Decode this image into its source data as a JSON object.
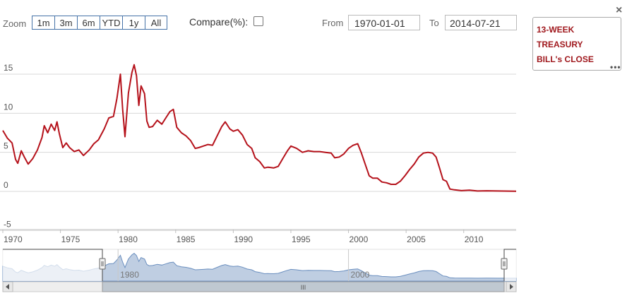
{
  "toolbar": {
    "zoom_label": "Zoom",
    "zoom_buttons": [
      "1m",
      "3m",
      "6m",
      "YTD",
      "1y",
      "All"
    ],
    "compare_label": "Compare(%):",
    "from_label": "From",
    "from_value": "1970-01-01",
    "to_label": "To",
    "to_value": "2014-07-21"
  },
  "legend": {
    "line1": "13-WEEK",
    "line2": "TREASURY",
    "line3": "BILL's CLOSE"
  },
  "close_glyph": "×",
  "menu_glyph": "•••",
  "navigator": {
    "labels": [
      "1980",
      "2000"
    ],
    "scroll_glyph": "III"
  },
  "colors": {
    "series": "#b5121b",
    "grid": "#d8d8d8",
    "navigator_fill": "#a9bed8",
    "navigator_line": "#6b8fbf"
  },
  "chart_data": {
    "type": "line",
    "title": "",
    "xlabel": "",
    "ylabel": "",
    "ylim": [
      -5,
      15
    ],
    "xlim": [
      1970,
      2014.55
    ],
    "y_ticks": [
      "-5",
      "0",
      "5",
      "10",
      "15"
    ],
    "x_ticks": [
      "1970",
      "1975",
      "1980",
      "1985",
      "1990",
      "1995",
      "2000",
      "2005",
      "2010"
    ],
    "series": [
      {
        "name": "13-WEEK TREASURY BILL's CLOSE",
        "points": [
          [
            1970.0,
            7.8
          ],
          [
            1970.4,
            6.8
          ],
          [
            1970.8,
            6.2
          ],
          [
            1971.1,
            4.1
          ],
          [
            1971.3,
            3.6
          ],
          [
            1971.6,
            5.2
          ],
          [
            1971.9,
            4.3
          ],
          [
            1972.2,
            3.5
          ],
          [
            1972.6,
            4.2
          ],
          [
            1973.0,
            5.3
          ],
          [
            1973.4,
            6.9
          ],
          [
            1973.6,
            8.4
          ],
          [
            1973.9,
            7.5
          ],
          [
            1974.2,
            8.6
          ],
          [
            1974.5,
            7.8
          ],
          [
            1974.7,
            8.9
          ],
          [
            1974.9,
            7.4
          ],
          [
            1975.2,
            5.6
          ],
          [
            1975.5,
            6.2
          ],
          [
            1975.8,
            5.6
          ],
          [
            1976.2,
            5.1
          ],
          [
            1976.6,
            5.3
          ],
          [
            1977.0,
            4.6
          ],
          [
            1977.5,
            5.3
          ],
          [
            1977.9,
            6.1
          ],
          [
            1978.3,
            6.6
          ],
          [
            1978.8,
            8.0
          ],
          [
            1979.2,
            9.4
          ],
          [
            1979.6,
            9.6
          ],
          [
            1979.9,
            11.9
          ],
          [
            1980.2,
            15.0
          ],
          [
            1980.4,
            10.5
          ],
          [
            1980.6,
            7.0
          ],
          [
            1980.9,
            12.6
          ],
          [
            1981.2,
            15.2
          ],
          [
            1981.4,
            16.2
          ],
          [
            1981.6,
            14.8
          ],
          [
            1981.8,
            11.0
          ],
          [
            1982.0,
            13.5
          ],
          [
            1982.3,
            12.5
          ],
          [
            1982.5,
            9.0
          ],
          [
            1982.7,
            8.2
          ],
          [
            1983.0,
            8.3
          ],
          [
            1983.4,
            9.1
          ],
          [
            1983.8,
            8.6
          ],
          [
            1984.1,
            9.3
          ],
          [
            1984.5,
            10.2
          ],
          [
            1984.8,
            10.5
          ],
          [
            1985.1,
            8.2
          ],
          [
            1985.5,
            7.5
          ],
          [
            1985.9,
            7.1
          ],
          [
            1986.3,
            6.5
          ],
          [
            1986.7,
            5.5
          ],
          [
            1987.0,
            5.6
          ],
          [
            1987.4,
            5.8
          ],
          [
            1987.8,
            6.0
          ],
          [
            1988.2,
            5.9
          ],
          [
            1988.6,
            7.1
          ],
          [
            1989.0,
            8.3
          ],
          [
            1989.3,
            8.9
          ],
          [
            1989.7,
            8.0
          ],
          [
            1990.0,
            7.7
          ],
          [
            1990.4,
            7.9
          ],
          [
            1990.8,
            7.2
          ],
          [
            1991.2,
            6.0
          ],
          [
            1991.6,
            5.5
          ],
          [
            1991.9,
            4.3
          ],
          [
            1992.3,
            3.8
          ],
          [
            1992.7,
            3.0
          ],
          [
            1993.0,
            3.1
          ],
          [
            1993.5,
            3.0
          ],
          [
            1993.9,
            3.2
          ],
          [
            1994.3,
            4.2
          ],
          [
            1994.7,
            5.2
          ],
          [
            1995.0,
            5.8
          ],
          [
            1995.5,
            5.5
          ],
          [
            1996.0,
            5.0
          ],
          [
            1996.5,
            5.2
          ],
          [
            1997.0,
            5.1
          ],
          [
            1997.5,
            5.1
          ],
          [
            1998.0,
            5.0
          ],
          [
            1998.5,
            4.9
          ],
          [
            1998.8,
            4.3
          ],
          [
            1999.2,
            4.4
          ],
          [
            1999.6,
            4.8
          ],
          [
            2000.0,
            5.5
          ],
          [
            2000.4,
            5.9
          ],
          [
            2000.8,
            6.1
          ],
          [
            2001.1,
            5.0
          ],
          [
            2001.4,
            3.7
          ],
          [
            2001.8,
            2.0
          ],
          [
            2002.1,
            1.7
          ],
          [
            2002.5,
            1.7
          ],
          [
            2002.9,
            1.2
          ],
          [
            2003.3,
            1.1
          ],
          [
            2003.7,
            0.9
          ],
          [
            2004.1,
            0.9
          ],
          [
            2004.5,
            1.3
          ],
          [
            2004.9,
            2.0
          ],
          [
            2005.3,
            2.8
          ],
          [
            2005.7,
            3.5
          ],
          [
            2006.1,
            4.4
          ],
          [
            2006.5,
            4.9
          ],
          [
            2006.9,
            5.0
          ],
          [
            2007.3,
            4.9
          ],
          [
            2007.6,
            4.4
          ],
          [
            2007.9,
            3.0
          ],
          [
            2008.2,
            1.5
          ],
          [
            2008.5,
            1.3
          ],
          [
            2008.8,
            0.3
          ],
          [
            2009.2,
            0.2
          ],
          [
            2009.8,
            0.1
          ],
          [
            2010.5,
            0.15
          ],
          [
            2011.2,
            0.05
          ],
          [
            2012.0,
            0.08
          ],
          [
            2013.0,
            0.05
          ],
          [
            2014.55,
            0.03
          ]
        ]
      }
    ]
  }
}
